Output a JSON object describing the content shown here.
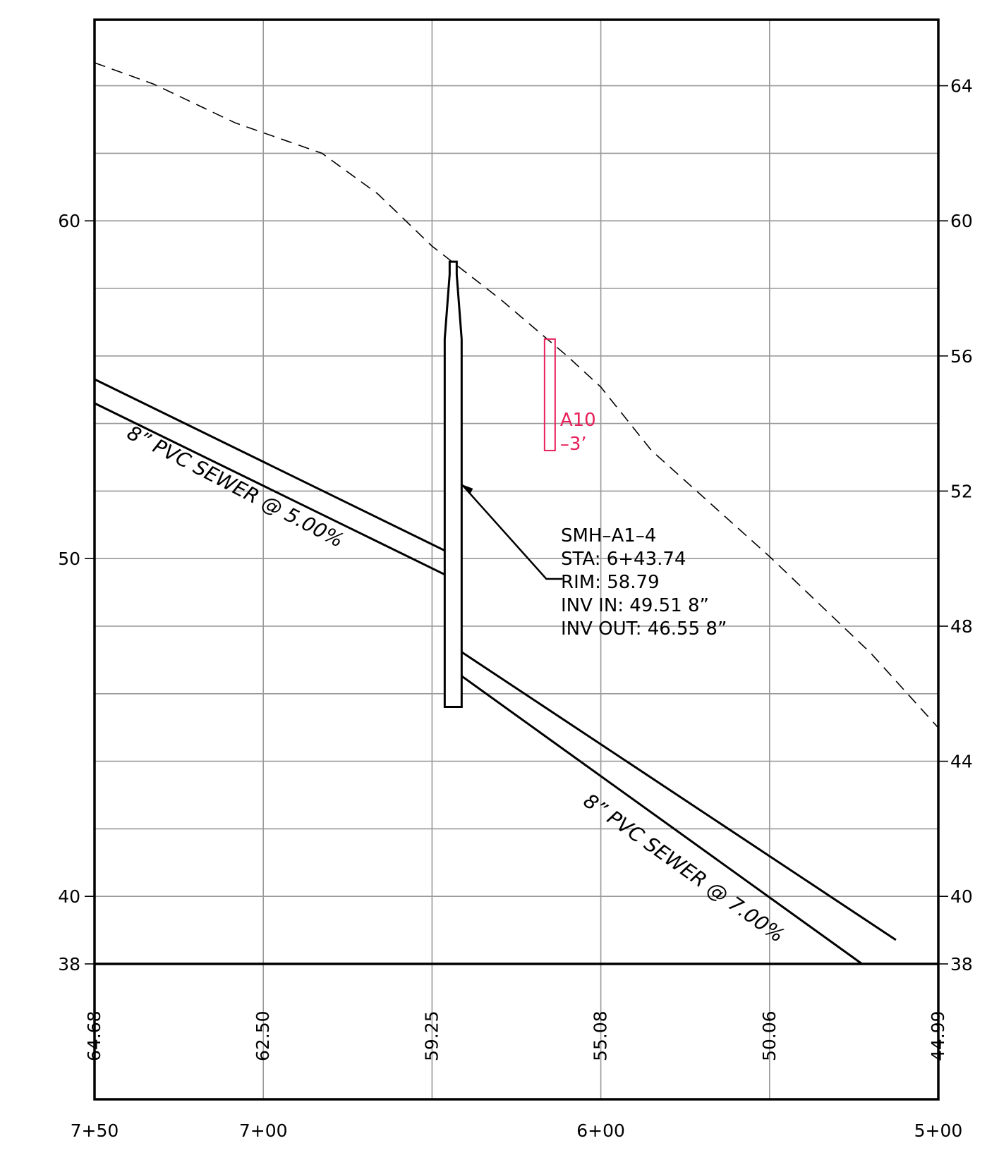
{
  "y_axis": {
    "left_labels": [
      {
        "v": 60,
        "t": "60"
      },
      {
        "v": 50,
        "t": "50"
      },
      {
        "v": 40,
        "t": "40"
      },
      {
        "v": 38,
        "t": "38"
      }
    ],
    "right_labels": [
      {
        "v": 64,
        "t": "64"
      },
      {
        "v": 60,
        "t": "60"
      },
      {
        "v": 56,
        "t": "56"
      },
      {
        "v": 52,
        "t": "52"
      },
      {
        "v": 48,
        "t": "48"
      },
      {
        "v": 44,
        "t": "44"
      },
      {
        "v": 40,
        "t": "40"
      },
      {
        "v": 38,
        "t": "38"
      }
    ],
    "gridlines": [
      64,
      62,
      60,
      58,
      56,
      54,
      52,
      50,
      48,
      46,
      44,
      42,
      40
    ]
  },
  "stations": [
    {
      "label": "7+50",
      "x": 750
    },
    {
      "label": "7+00",
      "x": 700
    },
    {
      "label": "6+00",
      "x": 600
    },
    {
      "label": "5+00",
      "x": 500
    }
  ],
  "station_gridlines": [
    700,
    650,
    600,
    550
  ],
  "ground_elevation_labels": [
    {
      "x": 750,
      "t": "64.68"
    },
    {
      "x": 700,
      "t": "62.50"
    },
    {
      "x": 650,
      "t": "59.25"
    },
    {
      "x": 600,
      "t": "55.08"
    },
    {
      "x": 550,
      "t": "50.06"
    },
    {
      "x": 500,
      "t": "44.99"
    }
  ],
  "ground_profile": [
    [
      750,
      64.68
    ],
    [
      732.5,
      64.05
    ],
    [
      708.3,
      62.9
    ],
    [
      682.6,
      62.0
    ],
    [
      666.1,
      60.8
    ],
    [
      650,
      59.25
    ],
    [
      630,
      57.7
    ],
    [
      610,
      56.0
    ],
    [
      600,
      55.08
    ],
    [
      585,
      53.2
    ],
    [
      550,
      50.06
    ],
    [
      520,
      47.2
    ],
    [
      500,
      44.99
    ]
  ],
  "manhole": {
    "station": 643.74,
    "rim": 58.79,
    "inv_in": 49.51,
    "inv_out": 46.55,
    "callout": [
      "SMH–A1–4",
      "STA: 6+43.74",
      "RIM: 58.79",
      "INV IN: 49.51  8”",
      "INV OUT: 46.55  8”"
    ]
  },
  "pipes": [
    {
      "label": "8” PVC SEWER @ 5.00%",
      "from": [
        750,
        54.6
      ],
      "to": [
        645.86,
        49.51
      ]
    },
    {
      "label": "8” PVC SEWER @ 7.00%",
      "from": [
        641.62,
        46.55
      ],
      "to": [
        522.6,
        38.0
      ]
    }
  ],
  "markup": {
    "line1": "A10",
    "line2": "–3’",
    "station": 615,
    "elev_top": 56.5,
    "elev_bottom": 53.2,
    "color": "#e8205a"
  }
}
